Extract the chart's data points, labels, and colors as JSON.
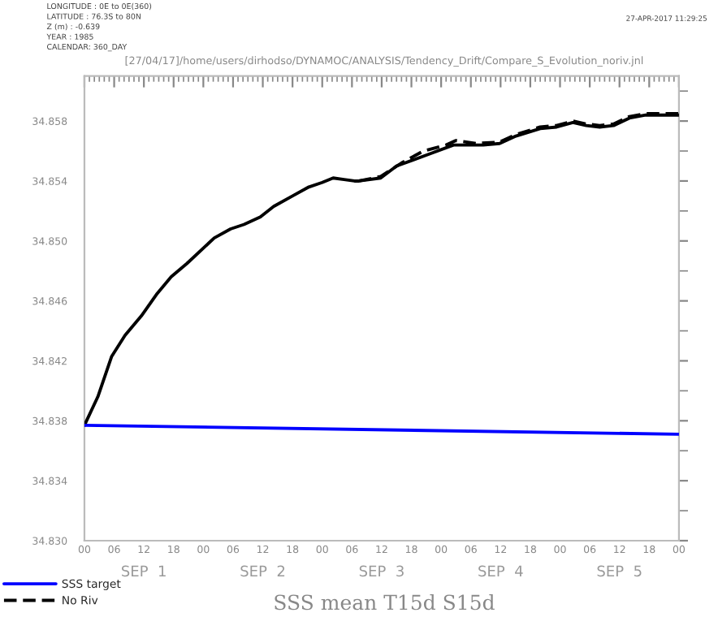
{
  "chart_data": {
    "type": "line",
    "title": "SSS mean T15d S15d",
    "xlim": [
      0,
      120
    ],
    "ylim": [
      34.83,
      34.861
    ],
    "xticks": [
      {
        "value": 0,
        "label": "00"
      },
      {
        "value": 6,
        "label": "06"
      },
      {
        "value": 12,
        "label": "12"
      },
      {
        "value": 18,
        "label": "18"
      },
      {
        "value": 24,
        "label": "00"
      },
      {
        "value": 30,
        "label": "06"
      },
      {
        "value": 36,
        "label": "12"
      },
      {
        "value": 42,
        "label": "18"
      },
      {
        "value": 48,
        "label": "00"
      },
      {
        "value": 54,
        "label": "06"
      },
      {
        "value": 60,
        "label": "12"
      },
      {
        "value": 66,
        "label": "18"
      },
      {
        "value": 72,
        "label": "00"
      },
      {
        "value": 78,
        "label": "06"
      },
      {
        "value": 84,
        "label": "12"
      },
      {
        "value": 90,
        "label": "18"
      },
      {
        "value": 96,
        "label": "00"
      },
      {
        "value": 102,
        "label": "06"
      },
      {
        "value": 108,
        "label": "12"
      },
      {
        "value": 114,
        "label": "18"
      },
      {
        "value": 120,
        "label": "00"
      }
    ],
    "yticks": [
      {
        "value": 34.83,
        "label": "34.830"
      },
      {
        "value": 34.834,
        "label": "34.834"
      },
      {
        "value": 34.838,
        "label": "34.838"
      },
      {
        "value": 34.842,
        "label": "34.842"
      },
      {
        "value": 34.846,
        "label": "34.846"
      },
      {
        "value": 34.85,
        "label": "34.850"
      },
      {
        "value": 34.854,
        "label": "34.854"
      },
      {
        "value": 34.858,
        "label": "34.858"
      }
    ],
    "grid": false,
    "legend": "bottom left",
    "series": [
      {
        "color": "#000000",
        "line_style": "solid",
        "x": [
          0,
          2.7,
          5.5,
          8.2,
          11.5,
          14.7,
          17.5,
          20.7,
          26.2,
          29.5,
          32.2,
          35.5,
          38.2,
          42,
          45.3,
          48,
          50.2,
          52.4,
          54.5,
          55.4,
          59.8,
          63,
          66.3,
          69.6,
          74.5,
          76.7,
          80.5,
          83.8,
          87.1,
          92,
          95.3,
          98.6,
          101.3,
          104,
          106.8,
          110,
          113.3,
          116.6,
          120
        ],
        "values": [
          34.8377,
          34.8396,
          34.8423,
          34.8437,
          34.845,
          34.8465,
          34.8476,
          34.8485,
          34.8502,
          34.8508,
          34.8511,
          34.8516,
          34.8523,
          34.853,
          34.8536,
          34.8539,
          34.8542,
          34.8541,
          34.854,
          34.854,
          34.8542,
          34.855,
          34.8554,
          34.8558,
          34.8564,
          34.8564,
          34.8564,
          34.8565,
          34.857,
          34.8575,
          34.8576,
          34.8579,
          34.8577,
          34.8576,
          34.8577,
          34.8582,
          34.8584,
          34.8584,
          34.8584
        ]
      },
      {
        "name": "SSS target",
        "color": "#0000ff",
        "line_style": "solid",
        "x": [
          0,
          120
        ],
        "values": [
          34.8377,
          34.8371
        ]
      },
      {
        "name": "No Riv",
        "color": "#000000",
        "line_style": "dashed",
        "x": [
          55.4,
          59.8,
          64,
          68.4,
          73,
          75,
          79,
          83.8,
          87.1,
          92,
          95.3,
          98.6,
          101.3,
          104,
          106.8,
          110,
          113.3,
          116.6,
          120
        ],
        "values": [
          34.854,
          34.8543,
          34.8552,
          34.856,
          34.8564,
          34.8567,
          34.8565,
          34.8566,
          34.8571,
          34.8576,
          34.8577,
          34.858,
          34.8578,
          34.8577,
          34.8578,
          34.8583,
          34.8585,
          34.8585,
          34.8585
        ]
      }
    ],
    "annotations": [
      "LONGITUDE : 0E to 0E(360)",
      "LATITUDE : 76.3S to 80N",
      "Z (m) : -0.639",
      "YEAR : 1985",
      "CALENDAR: 360_DAY",
      "27-APR-2017 11:29:25",
      "[27/04/17]/home/users/dirhodso/DYNAMOC/ANALYSIS/Tendency_Drift/Compare_S_Evolution_noriv.jnl",
      "SEP  1",
      "SEP  2",
      "SEP  3",
      "SEP  4",
      "SEP  5"
    ]
  }
}
